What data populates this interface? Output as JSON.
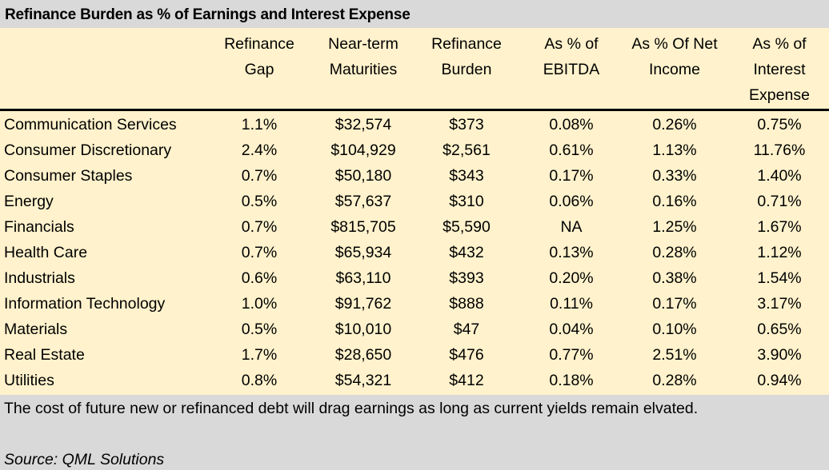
{
  "title": "Refinance Burden as % of Earnings and Interest Expense",
  "columns": [
    {
      "line1": "Refinance",
      "line2": "Gap",
      "line3": ""
    },
    {
      "line1": "Near-term",
      "line2": "Maturities",
      "line3": ""
    },
    {
      "line1": "Refinance",
      "line2": "Burden",
      "line3": ""
    },
    {
      "line1": "As % of",
      "line2": "EBITDA",
      "line3": ""
    },
    {
      "line1": "As % Of Net",
      "line2": "Income",
      "line3": ""
    },
    {
      "line1": "As % of",
      "line2": "Interest",
      "line3": "Expense"
    }
  ],
  "rows": [
    {
      "sector": "Communication Services",
      "gap": "1.1%",
      "maturities": "$32,574",
      "burden": "$373",
      "ebitda": "0.08%",
      "net_income": "0.26%",
      "interest": "0.75%"
    },
    {
      "sector": "Consumer Discretionary",
      "gap": "2.4%",
      "maturities": "$104,929",
      "burden": "$2,561",
      "ebitda": "0.61%",
      "net_income": "1.13%",
      "interest": "11.76%"
    },
    {
      "sector": "Consumer Staples",
      "gap": "0.7%",
      "maturities": "$50,180",
      "burden": "$343",
      "ebitda": "0.17%",
      "net_income": "0.33%",
      "interest": "1.40%"
    },
    {
      "sector": "Energy",
      "gap": "0.5%",
      "maturities": "$57,637",
      "burden": "$310",
      "ebitda": "0.06%",
      "net_income": "0.16%",
      "interest": "0.71%"
    },
    {
      "sector": "Financials",
      "gap": "0.7%",
      "maturities": "$815,705",
      "burden": "$5,590",
      "ebitda": "NA",
      "net_income": "1.25%",
      "interest": "1.67%"
    },
    {
      "sector": "Health Care",
      "gap": "0.7%",
      "maturities": "$65,934",
      "burden": "$432",
      "ebitda": "0.13%",
      "net_income": "0.28%",
      "interest": "1.12%"
    },
    {
      "sector": "Industrials",
      "gap": "0.6%",
      "maturities": "$63,110",
      "burden": "$393",
      "ebitda": "0.20%",
      "net_income": "0.38%",
      "interest": "1.54%"
    },
    {
      "sector": "Information Technology",
      "gap": "1.0%",
      "maturities": "$91,762",
      "burden": "$888",
      "ebitda": "0.11%",
      "net_income": "0.17%",
      "interest": "3.17%"
    },
    {
      "sector": "Materials",
      "gap": "0.5%",
      "maturities": "$10,010",
      "burden": "$47",
      "ebitda": "0.04%",
      "net_income": "0.10%",
      "interest": "0.65%"
    },
    {
      "sector": "Real Estate",
      "gap": "1.7%",
      "maturities": "$28,650",
      "burden": "$476",
      "ebitda": "0.77%",
      "net_income": "2.51%",
      "interest": "3.90%"
    },
    {
      "sector": "Utilities",
      "gap": "0.8%",
      "maturities": "$54,321",
      "burden": "$412",
      "ebitda": "0.18%",
      "net_income": "0.28%",
      "interest": "0.94%"
    }
  ],
  "note": "The cost of future new or refinanced debt will drag earnings as long as current yields remain elvated.",
  "source": "Source: QML Solutions",
  "colors": {
    "header_bg": "#d9d9d9",
    "body_bg": "#fff2cc",
    "rule": "#000000"
  }
}
